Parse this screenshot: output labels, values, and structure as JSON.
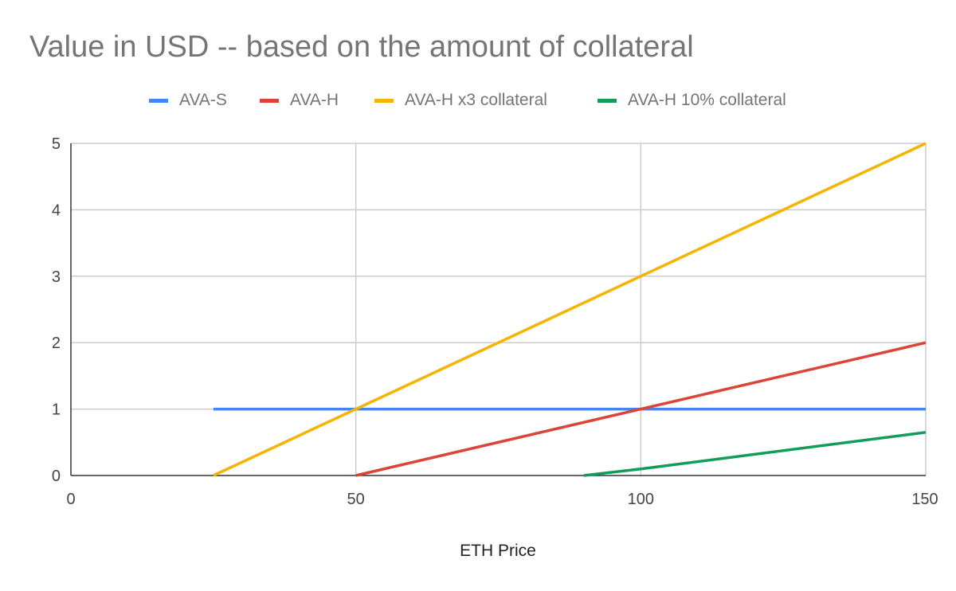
{
  "chart_data": {
    "type": "line",
    "title": "Value in USD -- based on the amount of collateral",
    "xlabel": "ETH Price",
    "ylabel": "",
    "xlim": [
      0,
      150
    ],
    "ylim": [
      0,
      5
    ],
    "x_ticks": [
      "0",
      "50",
      "100",
      "150"
    ],
    "y_ticks": [
      "0",
      "1",
      "2",
      "3",
      "4",
      "5"
    ],
    "grid": true,
    "legend_position": "top",
    "series": [
      {
        "name": "AVA-S",
        "color": "#4285f4",
        "points": [
          [
            25,
            1
          ],
          [
            150,
            1
          ]
        ]
      },
      {
        "name": "AVA-H",
        "color": "#db4437",
        "points": [
          [
            50,
            0
          ],
          [
            100,
            1
          ],
          [
            150,
            2
          ]
        ]
      },
      {
        "name": "AVA-H x3 collateral",
        "color": "#f4b400",
        "points": [
          [
            25,
            0
          ],
          [
            50,
            1
          ],
          [
            100,
            3
          ],
          [
            150,
            5
          ]
        ]
      },
      {
        "name": "AVA-H 10% collateral",
        "color": "#0f9d58",
        "points": [
          [
            90,
            0
          ],
          [
            100,
            0.1
          ],
          [
            150,
            0.65
          ]
        ]
      }
    ]
  }
}
